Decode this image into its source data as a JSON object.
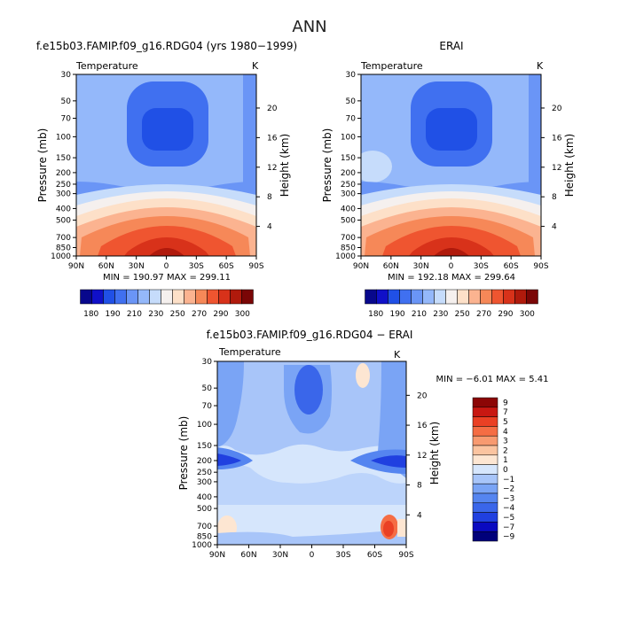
{
  "figure_title": "ANN",
  "panels": {
    "model": {
      "title": "f.e15b03.FAMIP.f09_g16.RDG04 (yrs 1980−1999)",
      "field": "Temperature",
      "units": "K",
      "stats": "MIN = 190.97   MAX = 299.11"
    },
    "obs": {
      "title": "ERAI",
      "field": "Temperature",
      "units": "K",
      "stats": "MIN = 192.18   MAX = 299.64"
    },
    "diff": {
      "title": "f.e15b03.FAMIP.f09_g16.RDG04 − ERAI",
      "field": "Temperature",
      "units": "K",
      "stats": "MIN =    −6.01   MAX =    5.41"
    }
  },
  "axes": {
    "ylabel": "Pressure (mb)",
    "y2label": "Height (km)"
  },
  "colors": {
    "abs": [
      "#08088c",
      "#1010c8",
      "#2050e6",
      "#4070f0",
      "#6a95f6",
      "#94b8fa",
      "#c6dcfb",
      "#f5f0ee",
      "#fde0c8",
      "#fbb390",
      "#f68858",
      "#ef5530",
      "#d8321a",
      "#b01a0c",
      "#7a0606"
    ],
    "diff": [
      "#00007a",
      "#0a0ac0",
      "#2040e0",
      "#3a66ea",
      "#5585f0",
      "#7aa4f5",
      "#a8c5f9",
      "#d6e6fc",
      "#fde6d2",
      "#fbc4a0",
      "#f89a70",
      "#f56d44",
      "#ea4024",
      "#c81812",
      "#8c0606"
    ]
  },
  "chart_data": [
    {
      "type": "heatmap",
      "title": "f.e15b03.FAMIP.f09_g16.RDG04 (yrs 1980−1999)",
      "field": "Temperature",
      "units": "K",
      "xlabel": "",
      "ylabel": "Pressure (mb)",
      "y2label": "Height (km)",
      "x_ticks": [
        "90N",
        "60N",
        "30N",
        "0",
        "30S",
        "60S",
        "90S"
      ],
      "y_ticks": [
        30,
        50,
        70,
        100,
        150,
        200,
        250,
        300,
        400,
        500,
        700,
        850,
        1000
      ],
      "y2_ticks": [
        4,
        8,
        12,
        16,
        20
      ],
      "ylim": [
        1000,
        30
      ],
      "y_scale": "log",
      "min": 190.97,
      "max": 299.11,
      "colorbar": {
        "levels": [
          180,
          190,
          200,
          210,
          220,
          230,
          240,
          250,
          260,
          270,
          280,
          290,
          300
        ],
        "labels": [
          "180",
          "190",
          "210",
          "230",
          "250",
          "270",
          "290",
          "300"
        ]
      }
    },
    {
      "type": "heatmap",
      "title": "ERAI",
      "field": "Temperature",
      "units": "K",
      "xlabel": "",
      "ylabel": "Pressure (mb)",
      "y2label": "Height (km)",
      "x_ticks": [
        "90N",
        "60N",
        "30N",
        "0",
        "30S",
        "60S",
        "90S"
      ],
      "y_ticks": [
        30,
        50,
        70,
        100,
        150,
        200,
        250,
        300,
        400,
        500,
        700,
        850,
        1000
      ],
      "y2_ticks": [
        4,
        8,
        12,
        16,
        20
      ],
      "ylim": [
        1000,
        30
      ],
      "y_scale": "log",
      "min": 192.18,
      "max": 299.64,
      "colorbar": {
        "levels": [
          180,
          190,
          200,
          210,
          220,
          230,
          240,
          250,
          260,
          270,
          280,
          290,
          300
        ],
        "labels": [
          "180",
          "190",
          "210",
          "230",
          "250",
          "270",
          "290",
          "300"
        ]
      }
    },
    {
      "type": "heatmap",
      "title": "f.e15b03.FAMIP.f09_g16.RDG04 − ERAI",
      "field": "Temperature",
      "units": "K",
      "xlabel": "",
      "ylabel": "Pressure (mb)",
      "y2label": "Height (km)",
      "x_ticks": [
        "90N",
        "60N",
        "30N",
        "0",
        "30S",
        "60S",
        "90S"
      ],
      "y_ticks": [
        30,
        50,
        70,
        100,
        150,
        200,
        250,
        300,
        400,
        500,
        700,
        850,
        1000
      ],
      "y2_ticks": [
        4,
        8,
        12,
        16,
        20
      ],
      "ylim": [
        1000,
        30
      ],
      "y_scale": "log",
      "min": -6.01,
      "max": 5.41,
      "colorbar": {
        "levels": [
          -9,
          -7,
          -5,
          -4,
          -3,
          -2,
          -1,
          0,
          1,
          2,
          3,
          4,
          5,
          7,
          9
        ],
        "labels": [
          "9",
          "7",
          "5",
          "4",
          "3",
          "2",
          "1",
          "0",
          "−1",
          "−2",
          "−3",
          "−4",
          "−5",
          "−7",
          "−9"
        ]
      }
    }
  ]
}
